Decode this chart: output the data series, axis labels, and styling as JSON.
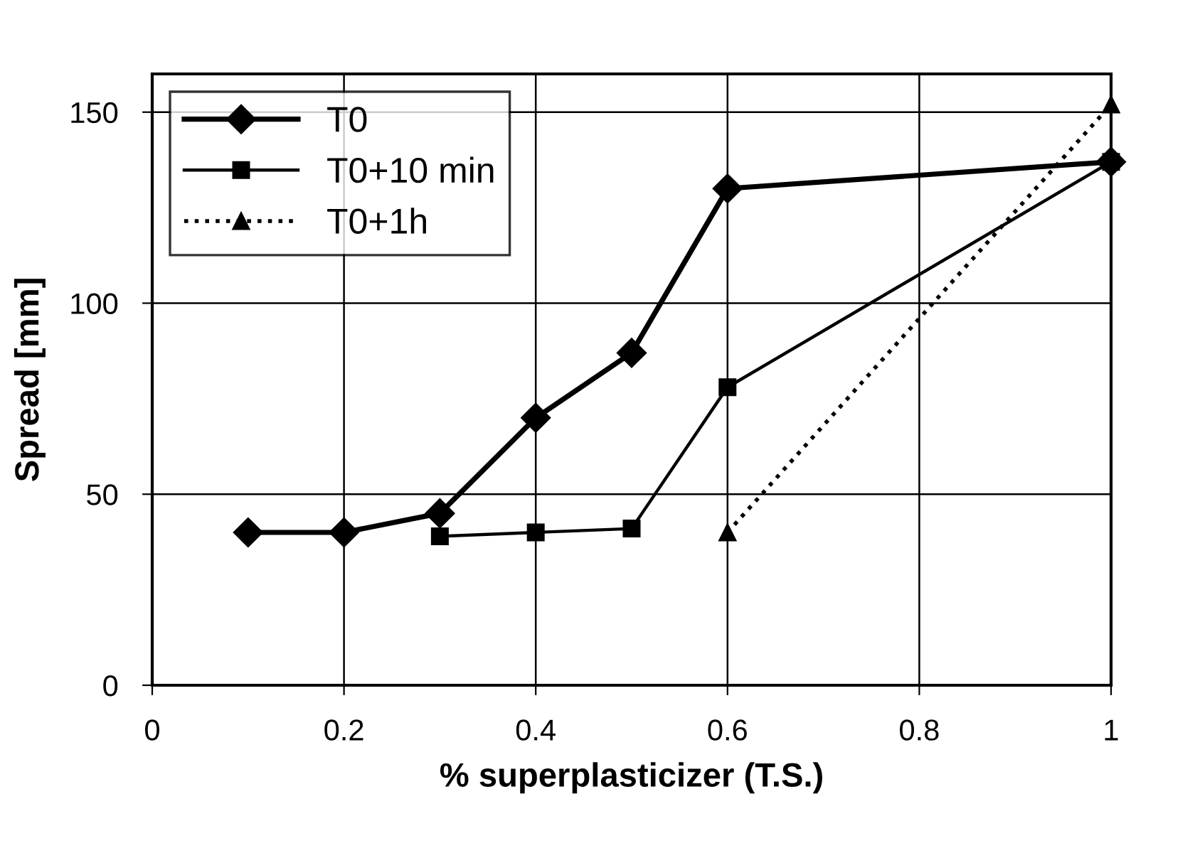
{
  "chart_data": {
    "type": "line",
    "xlabel": "% superplasticizer (T.S.)",
    "ylabel": "Spread [mm]",
    "xlim": [
      0,
      1
    ],
    "xticks": [
      0,
      0.2,
      0.4,
      0.6,
      0.8,
      1
    ],
    "ylim": [
      0,
      160
    ],
    "yticks": [
      0,
      50,
      100,
      150
    ],
    "grid": true,
    "legend": "top left",
    "series": [
      {
        "name": "T0",
        "color": "#000000",
        "marker": "diamond",
        "line_style": "solid",
        "x": [
          0.1,
          0.2,
          0.3,
          0.4,
          0.5,
          0.6,
          1
        ],
        "values": [
          40,
          40,
          45,
          70,
          87,
          130,
          137
        ]
      },
      {
        "name": "T0+10 min",
        "color": "#000000",
        "marker": "square",
        "line_style": "solid",
        "x": [
          0.3,
          0.4,
          0.5,
          0.6,
          1
        ],
        "values": [
          39,
          40,
          41,
          78,
          137
        ]
      },
      {
        "name": "T0+1h",
        "color": "#000000",
        "marker": "triangle",
        "line_style": "dotted",
        "x": [
          0.6,
          1
        ],
        "values": [
          40,
          152
        ]
      }
    ]
  }
}
